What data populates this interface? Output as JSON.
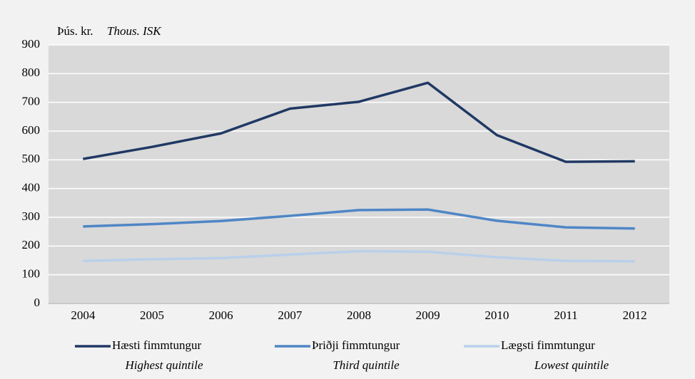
{
  "chart_data": {
    "type": "line",
    "ylabel": "Þús. kr.",
    "ylabel_en": "Thous. ISK",
    "categories": [
      "2004",
      "2005",
      "2006",
      "2007",
      "2008",
      "2009",
      "2010",
      "2011",
      "2012"
    ],
    "series": [
      {
        "name": "Hæsti fimmtungur",
        "name_en": "Highest quintile",
        "color": "#203864",
        "values": [
          503,
          545,
          592,
          678,
          702,
          768,
          586,
          493,
          495
        ]
      },
      {
        "name": "Þriðji fimmtungur",
        "name_en": "Third quintile",
        "color": "#4f86c6",
        "values": [
          268,
          276,
          287,
          305,
          325,
          327,
          288,
          265,
          261
        ]
      },
      {
        "name": "Lægsti fimmtungur",
        "name_en": "Lowest quintile",
        "color": "#b9d0ea",
        "values": [
          148,
          154,
          158,
          170,
          182,
          180,
          161,
          148,
          147
        ]
      }
    ],
    "ylim": [
      0,
      900
    ],
    "yticks": [
      0,
      100,
      200,
      300,
      400,
      500,
      600,
      700,
      800,
      900
    ],
    "grid": true,
    "legend": "bottom"
  }
}
